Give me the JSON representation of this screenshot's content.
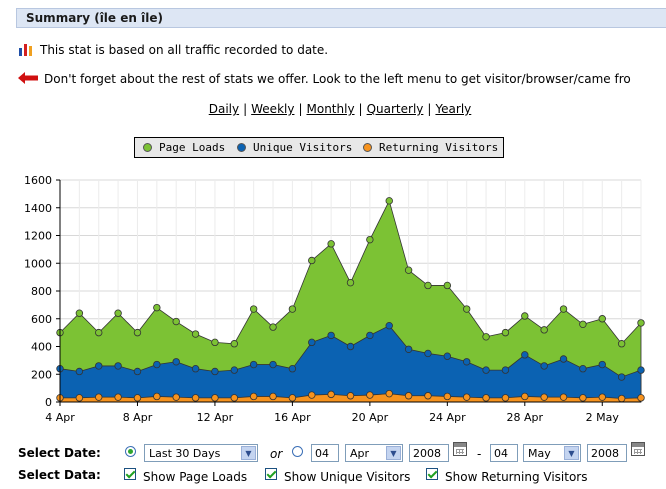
{
  "header": {
    "title": "Summary (île en île)"
  },
  "info": {
    "stat_note": "This stat is based on all traffic recorded to date.",
    "reminder": "Don't forget about the rest of stats we offer. Look to the left menu to get visitor/browser/came fro"
  },
  "nav": {
    "daily": "Daily",
    "weekly": "Weekly",
    "monthly": "Monthly",
    "quarterly": "Quarterly",
    "yearly": "Yearly",
    "separator": "|"
  },
  "legend": {
    "page_loads": "Page Loads",
    "unique_visitors": "Unique Visitors",
    "returning_visitors": "Returning Visitors"
  },
  "colors": {
    "page_loads": "#7cc234",
    "unique_visitors": "#0b62b2",
    "returning_visitors": "#f7931e"
  },
  "chart_data": {
    "type": "area",
    "stacked": false,
    "x_ticks": [
      "4 Apr",
      "8 Apr",
      "12 Apr",
      "16 Apr",
      "20 Apr",
      "24 Apr",
      "28 Apr",
      "2 May"
    ],
    "ylim": [
      0,
      1600
    ],
    "y_ticks": [
      "0",
      "200",
      "400",
      "600",
      "800",
      "1000",
      "1200",
      "1400",
      "1600"
    ],
    "grid": true,
    "legend_position": "top",
    "series": [
      {
        "name": "Page Loads",
        "values": [
          500,
          640,
          500,
          640,
          500,
          680,
          580,
          490,
          430,
          420,
          670,
          540,
          670,
          1020,
          1140,
          860,
          1170,
          1450,
          950,
          840,
          840,
          670,
          470,
          500,
          620,
          520,
          670,
          560,
          600,
          420,
          570
        ]
      },
      {
        "name": "Unique Visitors",
        "values": [
          240,
          220,
          260,
          260,
          220,
          270,
          290,
          240,
          220,
          230,
          270,
          270,
          240,
          430,
          480,
          400,
          480,
          550,
          380,
          350,
          330,
          290,
          230,
          230,
          340,
          260,
          310,
          240,
          270,
          180,
          230
        ]
      },
      {
        "name": "Returning Visitors",
        "values": [
          30,
          30,
          35,
          35,
          30,
          40,
          35,
          30,
          30,
          30,
          40,
          40,
          30,
          50,
          55,
          45,
          50,
          60,
          45,
          45,
          40,
          35,
          30,
          30,
          40,
          35,
          35,
          30,
          35,
          25,
          30
        ]
      }
    ]
  },
  "controls": {
    "select_date_label": "Select Date:",
    "select_data_label": "Select Data:",
    "range_option": "Last 30 Days",
    "or_label": "or",
    "from_day": "04",
    "from_month": "Apr",
    "from_year": "2008",
    "dash": "-",
    "to_day": "04",
    "to_month": "May",
    "to_year": "2008",
    "show_page_loads": "Show Page Loads",
    "show_unique_visitors": "Show Unique Visitors",
    "show_returning_visitors": "Show Returning Visitors"
  }
}
